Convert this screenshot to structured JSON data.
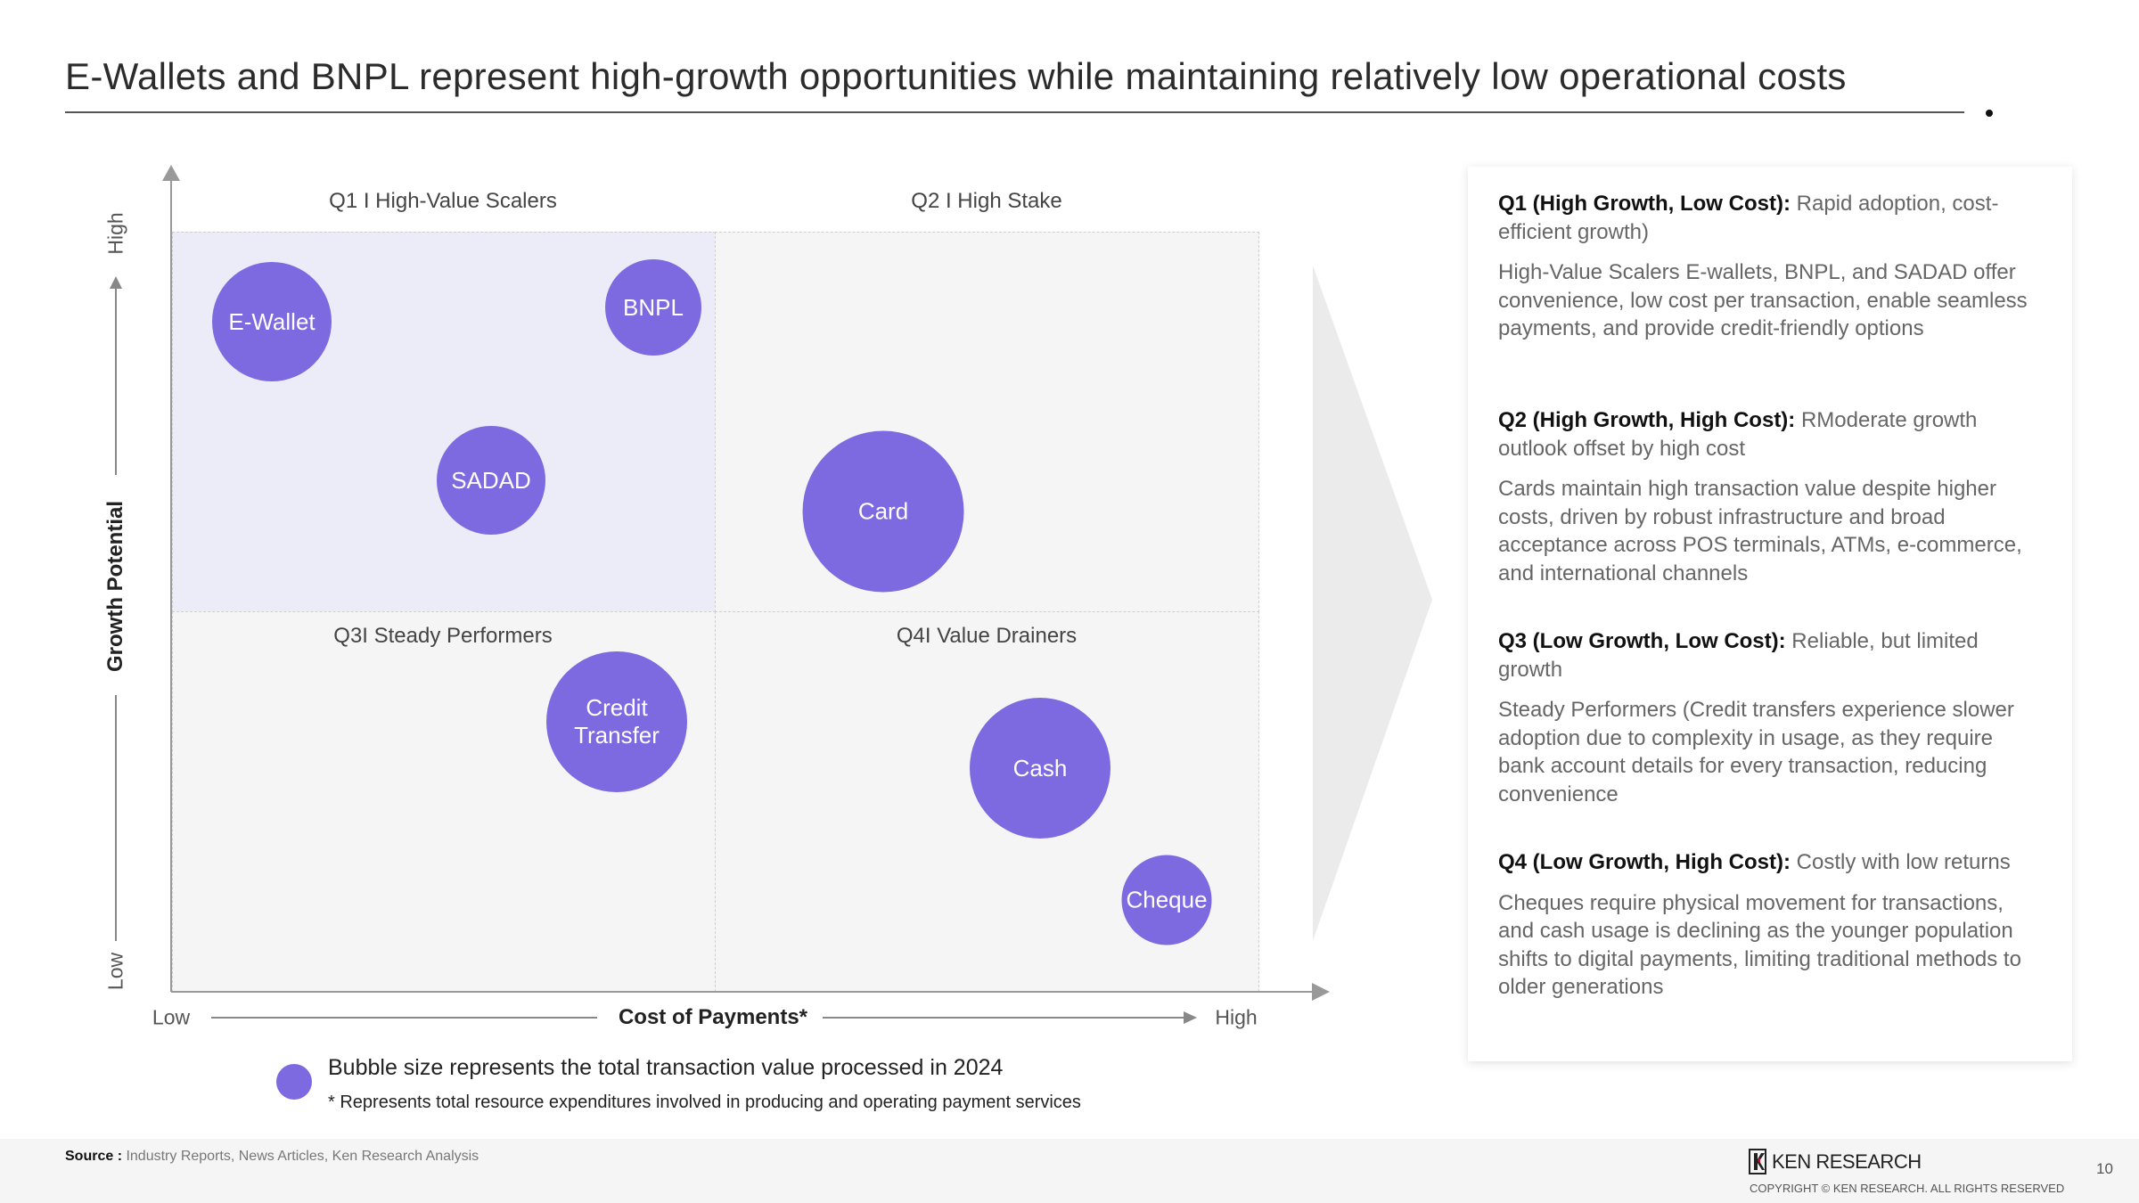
{
  "title": "E-Wallets and BNPL represent high-growth opportunities while maintaining relatively low operational costs",
  "matrix": {
    "quadrants": {
      "q1": "Q1 I High-Value Scalers",
      "q2": "Q2 I High Stake",
      "q3": "Q3I Steady Performers",
      "q4": "Q4I Value Drainers"
    },
    "bubbles": {
      "ewallet": "E-Wallet",
      "bnpl": "BNPL",
      "sadad": "SADAD",
      "card": "Card",
      "credit_transfer_1": "Credit",
      "credit_transfer_2": "Transfer",
      "cash": "Cash",
      "cheque": "Cheque"
    },
    "bubble_color": "#7D69E0",
    "y_axis": {
      "label": "Growth Potential",
      "high": "High",
      "low": "Low"
    },
    "x_axis": {
      "label": "Cost of Payments*",
      "low": "Low",
      "high": "High"
    }
  },
  "legend": {
    "bubble_note": "Bubble size represents the total transaction value processed in 2024",
    "footnote": "* Represents total resource expenditures involved in producing and operating payment services"
  },
  "panel": [
    {
      "heading": "Q1 (High Growth, Low Cost):",
      "summary": " Rapid adoption, cost-efficient growth)",
      "desc": "High-Value Scalers E-wallets, BNPL, and SADAD offer convenience, low cost per transaction, enable seamless payments, and provide credit-friendly options"
    },
    {
      "heading": "Q2 (High Growth, High Cost):",
      "summary": " RModerate growth outlook offset by high cost",
      "desc": "Cards maintain high transaction value despite higher costs, driven by robust infrastructure and broad acceptance across POS terminals, ATMs, e-commerce, and international channels"
    },
    {
      "heading": "Q3 (Low Growth, Low Cost):",
      "summary": " Reliable, but limited growth",
      "desc": "Steady Performers (Credit transfers experience slower adoption due to complexity in usage, as they require bank account details for every transaction, reducing convenience"
    },
    {
      "heading": "Q4 (Low Growth, High Cost):",
      "summary": " Costly with low returns",
      "desc": "Cheques require physical movement for transactions, and cash usage is declining as the younger population shifts to digital payments, limiting traditional methods to older generations"
    }
  ],
  "footer": {
    "source_label": "Source :",
    "source_text": " Industry Reports, News Articles, Ken Research Analysis",
    "logo_text": "KEN RESEARCH",
    "copyright": "COPYRIGHT © KEN RESEARCH. ALL RIGHTS RESERVED",
    "page_number": "10"
  }
}
